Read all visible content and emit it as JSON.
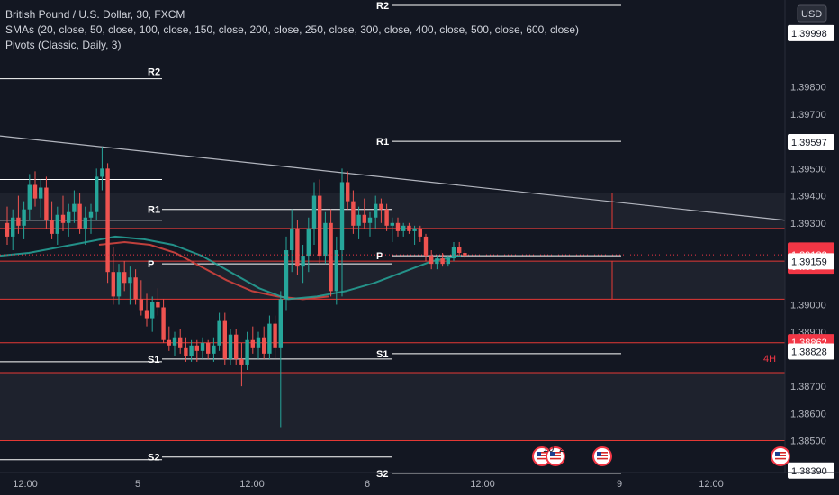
{
  "legend": {
    "symbol": "British Pound / U.S. Dollar, 30, FXCM",
    "smas": "SMAs (20, close, 50, close, 100, close, 150, close, 200, close, 250, close, 300, close, 400, close, 500, close, 600, close)",
    "pivots": "Pivots (Classic, Daily, 3)"
  },
  "currency_badge": "USD",
  "timeframe_badge": "4H",
  "price_tags": [
    {
      "value": "1.39199",
      "bg": "#f23645",
      "fg": "#ffffff"
    },
    {
      "value": "1.39183",
      "bg": "#f23645",
      "fg": "#ffffff",
      "sub": "04:08"
    },
    {
      "value": "1.38862",
      "bg": "#f23645",
      "fg": "#ffffff"
    },
    {
      "value": "1.39597",
      "bg": "#ffffff",
      "fg": "#131722"
    },
    {
      "value": "1.39159",
      "bg": "#ffffff",
      "fg": "#131722"
    },
    {
      "value": "1.38828",
      "bg": "#ffffff",
      "fg": "#131722"
    },
    {
      "value": "1.38390",
      "bg": "#ffffff",
      "fg": "#131722"
    },
    {
      "value": "1.39998",
      "bg": "#ffffff",
      "fg": "#131722"
    }
  ],
  "event_badges": [
    "10",
    "2"
  ],
  "colors": {
    "background": "#131722",
    "up": "#26a69a",
    "down": "#ef5350",
    "sma_a": "#26a69a",
    "sma_b": "#c0403c",
    "zone_line": "#e53935",
    "pivot_line": "#ffffff",
    "trendline": "#b2b5be"
  },
  "chart_data": {
    "type": "candlestick",
    "title": "British Pound / U.S. Dollar, 30, FXCM",
    "xlabel": "",
    "ylabel": "",
    "ylim": [
      1.383,
      1.4012
    ],
    "y_ticks": [
      "1.38390",
      "1.38500",
      "1.38600",
      "1.38700",
      "1.38828",
      "1.38900",
      "1.39000",
      "1.39159",
      "1.39300",
      "1.39400",
      "1.39500",
      "1.39597",
      "1.39700",
      "1.39800"
    ],
    "x_ticks": [
      "12:00",
      "5",
      "12:00",
      "6",
      "12:00",
      "9",
      "12:00"
    ],
    "candles": [
      [
        1.393,
        1.3936,
        1.3922,
        1.3925
      ],
      [
        1.3925,
        1.3935,
        1.392,
        1.3932
      ],
      [
        1.3932,
        1.394,
        1.3926,
        1.3929
      ],
      [
        1.3929,
        1.3938,
        1.3924,
        1.3935
      ],
      [
        1.3935,
        1.3948,
        1.3931,
        1.3944
      ],
      [
        1.3944,
        1.3949,
        1.3936,
        1.3939
      ],
      [
        1.3939,
        1.3946,
        1.3932,
        1.3943
      ],
      [
        1.3943,
        1.3947,
        1.3928,
        1.3931
      ],
      [
        1.3931,
        1.3938,
        1.3924,
        1.3926
      ],
      [
        1.3926,
        1.3936,
        1.3922,
        1.3933
      ],
      [
        1.3933,
        1.394,
        1.3927,
        1.393
      ],
      [
        1.393,
        1.3937,
        1.3925,
        1.3934
      ],
      [
        1.3934,
        1.3942,
        1.393,
        1.3937
      ],
      [
        1.3937,
        1.3941,
        1.3926,
        1.3928
      ],
      [
        1.3928,
        1.3936,
        1.3922,
        1.3932
      ],
      [
        1.3932,
        1.3937,
        1.3926,
        1.3934
      ],
      [
        1.3934,
        1.395,
        1.3931,
        1.3947
      ],
      [
        1.3947,
        1.3958,
        1.3942,
        1.395
      ],
      [
        1.395,
        1.3952,
        1.3908,
        1.3912
      ],
      [
        1.3912,
        1.3921,
        1.39,
        1.3903
      ],
      [
        1.3903,
        1.3915,
        1.39,
        1.3912
      ],
      [
        1.3912,
        1.3916,
        1.3905,
        1.3908
      ],
      [
        1.3908,
        1.3914,
        1.39,
        1.391
      ],
      [
        1.391,
        1.3913,
        1.39,
        1.3902
      ],
      [
        1.3902,
        1.3909,
        1.3896,
        1.3898
      ],
      [
        1.3898,
        1.3904,
        1.3892,
        1.3895
      ],
      [
        1.3895,
        1.3903,
        1.389,
        1.3901
      ],
      [
        1.3901,
        1.3906,
        1.3896,
        1.3899
      ],
      [
        1.3899,
        1.3902,
        1.3886,
        1.3887
      ],
      [
        1.3887,
        1.3892,
        1.3883,
        1.3885
      ],
      [
        1.3885,
        1.389,
        1.3881,
        1.3888
      ],
      [
        1.3888,
        1.3891,
        1.3882,
        1.3884
      ],
      [
        1.3884,
        1.3888,
        1.3879,
        1.3881
      ],
      [
        1.3881,
        1.3887,
        1.3879,
        1.3885
      ],
      [
        1.3885,
        1.3887,
        1.3879,
        1.3883
      ],
      [
        1.3883,
        1.3888,
        1.388,
        1.3886
      ],
      [
        1.3886,
        1.3887,
        1.388,
        1.3882
      ],
      [
        1.3882,
        1.3888,
        1.3879,
        1.3885
      ],
      [
        1.3885,
        1.3897,
        1.3883,
        1.3894
      ],
      [
        1.3894,
        1.3897,
        1.3878,
        1.388
      ],
      [
        1.388,
        1.3891,
        1.3878,
        1.3889
      ],
      [
        1.3889,
        1.3891,
        1.3878,
        1.388
      ],
      [
        1.388,
        1.3886,
        1.387,
        1.3878
      ],
      [
        1.3878,
        1.389,
        1.3876,
        1.3887
      ],
      [
        1.3887,
        1.3892,
        1.3882,
        1.3884
      ],
      [
        1.3884,
        1.389,
        1.388,
        1.3888
      ],
      [
        1.3888,
        1.3892,
        1.388,
        1.3882
      ],
      [
        1.3882,
        1.3896,
        1.388,
        1.3893
      ],
      [
        1.3893,
        1.3896,
        1.388,
        1.3884
      ],
      [
        1.3884,
        1.3905,
        1.3855,
        1.3902
      ],
      [
        1.3902,
        1.3925,
        1.3898,
        1.392
      ],
      [
        1.392,
        1.3935,
        1.3912,
        1.3928
      ],
      [
        1.3928,
        1.3931,
        1.3911,
        1.3914
      ],
      [
        1.3914,
        1.3922,
        1.3908,
        1.3918
      ],
      [
        1.3918,
        1.3932,
        1.3912,
        1.3928
      ],
      [
        1.3928,
        1.3945,
        1.3922,
        1.394
      ],
      [
        1.394,
        1.3946,
        1.3915,
        1.3918
      ],
      [
        1.3918,
        1.3934,
        1.3915,
        1.393
      ],
      [
        1.393,
        1.3935,
        1.3903,
        1.3905
      ],
      [
        1.3905,
        1.3925,
        1.39,
        1.392
      ],
      [
        1.392,
        1.395,
        1.3903,
        1.3945
      ],
      [
        1.3945,
        1.3949,
        1.3935,
        1.3938
      ],
      [
        1.3938,
        1.3942,
        1.3926,
        1.3929
      ],
      [
        1.3929,
        1.3936,
        1.3924,
        1.3933
      ],
      [
        1.3933,
        1.3939,
        1.3928,
        1.393
      ],
      [
        1.393,
        1.3934,
        1.3925,
        1.3932
      ],
      [
        1.3932,
        1.394,
        1.3928,
        1.3937
      ],
      [
        1.3937,
        1.3939,
        1.393,
        1.3935
      ],
      [
        1.3935,
        1.3937,
        1.3927,
        1.3929
      ],
      [
        1.3929,
        1.3932,
        1.3923,
        1.393
      ],
      [
        1.393,
        1.3932,
        1.3925,
        1.3927
      ],
      [
        1.3927,
        1.393,
        1.3925,
        1.3929
      ],
      [
        1.3929,
        1.393,
        1.3926,
        1.3927
      ],
      [
        1.3927,
        1.3929,
        1.3922,
        1.3928
      ],
      [
        1.3928,
        1.3929,
        1.3923,
        1.3925
      ],
      [
        1.3925,
        1.3926,
        1.3916,
        1.3918
      ],
      [
        1.3918,
        1.392,
        1.3913,
        1.3915
      ],
      [
        1.3915,
        1.3918,
        1.3913,
        1.3917
      ],
      [
        1.3917,
        1.3919,
        1.3914,
        1.3915
      ],
      [
        1.3915,
        1.3918,
        1.3914,
        1.3917
      ],
      [
        1.3917,
        1.3923,
        1.3916,
        1.3921
      ],
      [
        1.3921,
        1.3923,
        1.3918,
        1.3919
      ],
      [
        1.3919,
        1.392,
        1.3917,
        1.3918
      ]
    ],
    "sma_fast": [
      1.3918,
      1.3919,
      1.3921,
      1.3923,
      1.3925,
      1.3924,
      1.3922,
      1.3918,
      1.3912,
      1.3906,
      1.3902,
      1.3903,
      1.3905,
      1.3908,
      1.3912,
      1.3916,
      1.3918
    ],
    "sma_slow": [
      1.3922,
      1.3923,
      1.3922,
      1.3919,
      1.3914,
      1.3909,
      1.3905,
      1.3903,
      1.3902,
      1.3903
    ],
    "pivots": {
      "day1": {
        "R2": 1.3975,
        "R1": 1.3935,
        "P": 1.3915,
        "S1": 1.388,
        "S2": 1.3844
      },
      "day2": {
        "R2": 1.401,
        "R1": 1.396,
        "P": 1.3918,
        "S1": 1.3882,
        "S2": 1.3838
      }
    },
    "zones": [
      1.3941,
      1.3928,
      1.3916,
      1.3902,
      1.3886,
      1.3875,
      1.385
    ],
    "trendline": [
      1.3962,
      1.3931
    ]
  }
}
